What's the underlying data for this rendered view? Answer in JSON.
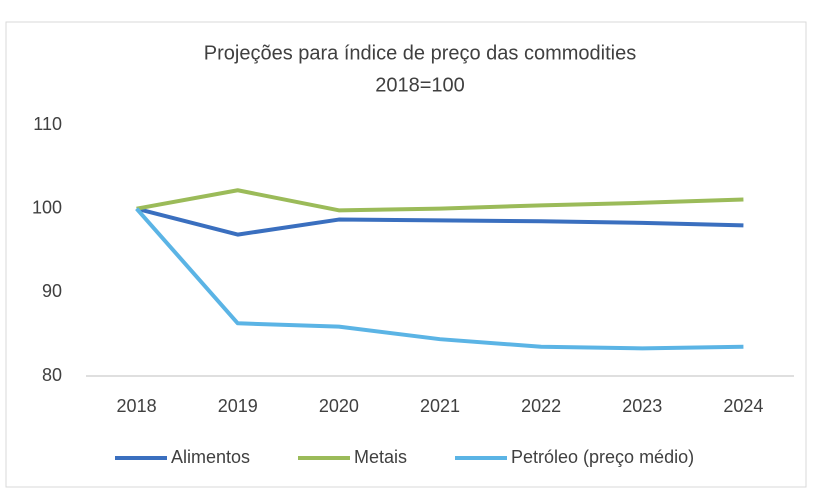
{
  "chart_data": {
    "type": "line",
    "title": "Projeções para índice de preço das commodities",
    "subtitle": "2018=100",
    "categories": [
      "2018",
      "2019",
      "2020",
      "2021",
      "2022",
      "2023",
      "2024"
    ],
    "series": [
      {
        "name": "Alimentos",
        "color": "#3a6fbf",
        "values": [
          100,
          96.9,
          98.7,
          98.6,
          98.5,
          98.3,
          98.0
        ]
      },
      {
        "name": "Metais",
        "color": "#9bbb59",
        "values": [
          100,
          102.2,
          99.8,
          100,
          100.4,
          100.7,
          101.1
        ]
      },
      {
        "name": "Petróleo (preço médio)",
        "color": "#5bb4e5",
        "values": [
          100,
          86.3,
          85.9,
          84.4,
          83.5,
          83.3,
          83.5
        ]
      }
    ],
    "ylim": [
      80,
      110
    ],
    "yticks": [
      80,
      90,
      100,
      110
    ],
    "grid": false,
    "legend": "bottom"
  }
}
